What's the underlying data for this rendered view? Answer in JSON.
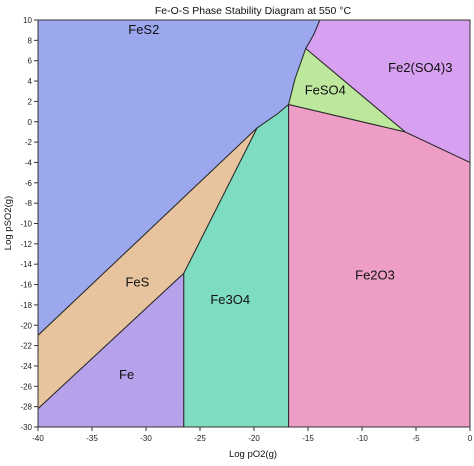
{
  "chart_data": {
    "type": "area",
    "title": "Fe-O-S Phase Stability Diagram at 550 °C",
    "xlabel": "Log pO2(g)",
    "ylabel": "Log pSO2(g)",
    "xlim": [
      -40,
      0
    ],
    "ylim": [
      -30,
      10
    ],
    "x_ticks": [
      -40,
      -35,
      -30,
      -25,
      -20,
      -15,
      -10,
      -5,
      0
    ],
    "y_ticks": [
      10,
      8,
      6,
      4,
      2,
      0,
      -2,
      -4,
      -6,
      -8,
      -10,
      -12,
      -14,
      -16,
      -18,
      -20,
      -22,
      -24,
      -26,
      -28,
      -30
    ],
    "x_tick_labels": [
      "-40",
      "-35",
      "-30",
      "-25",
      "-20",
      "-15",
      "-10",
      "-5",
      "0"
    ],
    "y_tick_labels": [
      "10",
      "8",
      "6",
      "4",
      "2",
      "0",
      "-2",
      "-4",
      "-6",
      "-8",
      "-10",
      "-12",
      "-14",
      "-16",
      "-18",
      "-20",
      "-22",
      "-24",
      "-26",
      "-28",
      "-30"
    ],
    "grid": false,
    "regions": [
      {
        "name": "FeS2",
        "color": "#9BA8EE",
        "label_at": [
          -30.2,
          8.6
        ],
        "polygon": [
          [
            -40,
            10
          ],
          [
            -13.9,
            10
          ],
          [
            -14.5,
            8.5
          ],
          [
            -15.2,
            7.2
          ],
          [
            -16.2,
            4.2
          ],
          [
            -16.8,
            1.7
          ],
          [
            -17.8,
            0.8
          ],
          [
            -19.7,
            -0.6
          ],
          [
            -40,
            -21.0
          ]
        ]
      },
      {
        "name": "FeS",
        "color": "#E8C49E",
        "label_at": [
          -30.8,
          -16.2
        ],
        "polygon": [
          [
            -40,
            -21.0
          ],
          [
            -19.7,
            -0.6
          ],
          [
            -26.5,
            -14.9
          ],
          [
            -40,
            -28.2
          ]
        ]
      },
      {
        "name": "Fe",
        "color": "#B6A2EA",
        "label_at": [
          -31.8,
          -25.3
        ],
        "polygon": [
          [
            -40,
            -28.2
          ],
          [
            -26.5,
            -14.9
          ],
          [
            -26.5,
            -30
          ],
          [
            -40,
            -30
          ]
        ]
      },
      {
        "name": "Fe3O4",
        "color": "#7EDCC0",
        "label_at": [
          -22.2,
          -17.9
        ],
        "polygon": [
          [
            -26.5,
            -14.9
          ],
          [
            -19.7,
            -0.6
          ],
          [
            -17.8,
            0.8
          ],
          [
            -16.8,
            1.7
          ],
          [
            -16.8,
            -30
          ],
          [
            -26.5,
            -30
          ]
        ]
      },
      {
        "name": "Fe2O3",
        "color": "#EE9EC6",
        "label_at": [
          -8.8,
          -15.5
        ],
        "polygon": [
          [
            -16.8,
            1.7
          ],
          [
            -6.0,
            -1.0
          ],
          [
            0,
            -4.0
          ],
          [
            0,
            -30
          ],
          [
            -16.8,
            -30
          ]
        ]
      },
      {
        "name": "FeSO4",
        "color": "#BDE79C",
        "label_at": [
          -13.4,
          2.7
        ],
        "polygon": [
          [
            -15.2,
            7.2
          ],
          [
            -6.0,
            -1.0
          ],
          [
            -16.8,
            1.7
          ],
          [
            -16.2,
            4.2
          ]
        ]
      },
      {
        "name": "Fe2(SO4)3",
        "color": "#D7A0F0",
        "label_at": [
          -4.6,
          4.9
        ],
        "polygon": [
          [
            -13.9,
            10
          ],
          [
            0,
            10
          ],
          [
            0,
            -4.0
          ],
          [
            -6.0,
            -1.0
          ],
          [
            -15.2,
            7.2
          ],
          [
            -14.5,
            8.5
          ]
        ]
      }
    ]
  }
}
